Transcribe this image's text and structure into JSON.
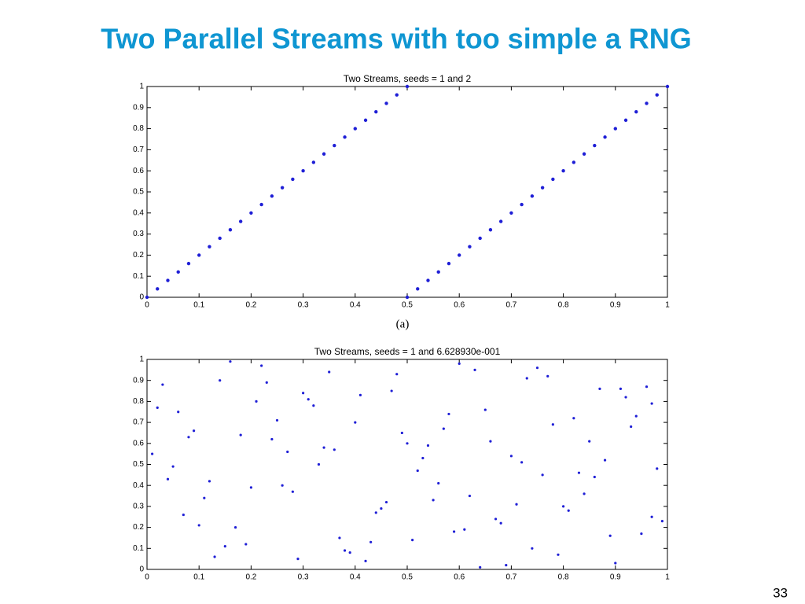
{
  "slide": {
    "title": "Two Parallel Streams with too simple a RNG",
    "page_number": "33",
    "caption": "(a)"
  },
  "chart_data": [
    {
      "type": "scatter",
      "title": "Two Streams, seeds = 1 and 2",
      "x": [
        0,
        0.02,
        0.04,
        0.06,
        0.08,
        0.1,
        0.12,
        0.14,
        0.16,
        0.18,
        0.2,
        0.22,
        0.24,
        0.26,
        0.28,
        0.3,
        0.32,
        0.34,
        0.36,
        0.38,
        0.4,
        0.42,
        0.44,
        0.46,
        0.48,
        0.5,
        0.5,
        0.52,
        0.54,
        0.56,
        0.58,
        0.6,
        0.62,
        0.64,
        0.66,
        0.68,
        0.7,
        0.72,
        0.74,
        0.76,
        0.78,
        0.8,
        0.82,
        0.84,
        0.86,
        0.88,
        0.9,
        0.92,
        0.94,
        0.96,
        0.98,
        1
      ],
      "values": [
        0,
        0.04,
        0.08,
        0.12,
        0.16,
        0.2,
        0.24,
        0.28,
        0.32,
        0.36,
        0.4,
        0.44,
        0.48,
        0.52,
        0.56,
        0.6,
        0.64,
        0.68,
        0.72,
        0.76,
        0.8,
        0.84,
        0.88,
        0.92,
        0.96,
        1,
        0,
        0.04,
        0.08,
        0.12,
        0.16,
        0.2,
        0.24,
        0.28,
        0.32,
        0.36,
        0.4,
        0.44,
        0.48,
        0.52,
        0.56,
        0.6,
        0.64,
        0.68,
        0.72,
        0.76,
        0.8,
        0.84,
        0.88,
        0.92,
        0.96,
        1
      ],
      "color": "#1f1fd6",
      "xlim": [
        0,
        1
      ],
      "xticks": [
        0,
        0.1,
        0.2,
        0.3,
        0.4,
        0.5,
        0.6,
        0.7,
        0.8,
        0.9,
        1
      ],
      "ylim": [
        0,
        1
      ],
      "yticks": [
        0,
        0.1,
        0.2,
        0.3,
        0.4,
        0.5,
        0.6,
        0.7,
        0.8,
        0.9,
        1
      ]
    },
    {
      "type": "scatter",
      "title": "Two Streams, seeds = 1 and 6.628930e-001",
      "x": [
        0.03,
        0.12,
        0.25,
        0.37,
        0.48,
        0.55,
        0.66,
        0.79,
        0.88,
        0.97,
        0.07,
        0.18,
        0.29,
        0.41,
        0.52,
        0.61,
        0.73,
        0.84,
        0.93,
        0.01,
        0.15,
        0.22,
        0.34,
        0.45,
        0.58,
        0.69,
        0.76,
        0.87,
        0.99,
        0.09,
        0.2,
        0.31,
        0.43,
        0.5,
        0.63,
        0.71,
        0.82,
        0.95,
        0.05,
        0.14,
        0.27,
        0.39,
        0.47,
        0.56,
        0.68,
        0.78,
        0.9,
        0.02,
        0.11,
        0.24,
        0.35,
        0.44,
        0.53,
        0.65,
        0.74,
        0.86,
        0.96,
        0.08,
        0.17,
        0.28,
        0.4,
        0.51,
        0.6,
        0.72,
        0.81,
        0.92,
        0.04,
        0.13,
        0.23,
        0.36,
        0.46,
        0.57,
        0.67,
        0.77,
        0.89,
        0.98,
        0.06,
        0.19,
        0.3,
        0.42,
        0.54,
        0.62,
        0.75,
        0.83,
        0.94,
        0.1,
        0.21,
        0.33,
        0.38,
        0.49,
        0.59,
        0.7,
        0.8,
        0.91,
        0.16,
        0.26,
        0.32,
        0.64,
        0.85,
        0.97
      ],
      "values": [
        0.88,
        0.42,
        0.71,
        0.15,
        0.93,
        0.33,
        0.61,
        0.07,
        0.52,
        0.79,
        0.26,
        0.64,
        0.05,
        0.83,
        0.47,
        0.19,
        0.91,
        0.36,
        0.68,
        0.55,
        0.11,
        0.97,
        0.58,
        0.29,
        0.74,
        0.02,
        0.45,
        0.86,
        0.23,
        0.66,
        0.39,
        0.81,
        0.13,
        0.6,
        0.95,
        0.31,
        0.72,
        0.17,
        0.49,
        0.9,
        0.56,
        0.08,
        0.85,
        0.41,
        0.22,
        0.69,
        0.03,
        0.77,
        0.34,
        0.62,
        0.94,
        0.27,
        0.53,
        0.76,
        0.1,
        0.44,
        0.87,
        0.63,
        0.2,
        0.37,
        0.7,
        0.14,
        0.98,
        0.51,
        0.28,
        0.82,
        0.43,
        0.06,
        0.89,
        0.57,
        0.32,
        0.67,
        0.24,
        0.92,
        0.16,
        0.48,
        0.75,
        0.12,
        0.84,
        0.04,
        0.59,
        0.35,
        0.96,
        0.46,
        0.73,
        0.21,
        0.8,
        0.5,
        0.09,
        0.65,
        0.18,
        0.54,
        0.3,
        0.86,
        0.99,
        0.4,
        0.78,
        0.01,
        0.61,
        0.25
      ],
      "color": "#1f1fd6",
      "xlim": [
        0,
        1
      ],
      "xticks": [
        0,
        0.1,
        0.2,
        0.3,
        0.4,
        0.5,
        0.6,
        0.7,
        0.8,
        0.9,
        1
      ],
      "ylim": [
        0,
        1
      ],
      "yticks": [
        0,
        0.1,
        0.2,
        0.3,
        0.4,
        0.5,
        0.6,
        0.7,
        0.8,
        0.9,
        1
      ]
    }
  ]
}
